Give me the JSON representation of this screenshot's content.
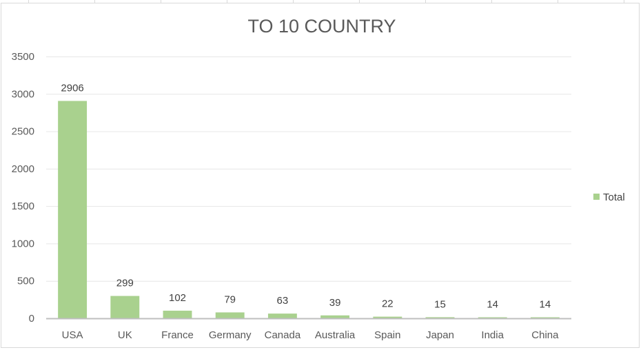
{
  "chart_data": {
    "type": "bar",
    "title": "TO 10 COUNTRY",
    "xlabel": "",
    "ylabel": "",
    "categories": [
      "USA",
      "UK",
      "France",
      "Germany",
      "Canada",
      "Australia",
      "Spain",
      "Japan",
      "India",
      "China"
    ],
    "series": [
      {
        "name": "Total",
        "values": [
          2906,
          299,
          102,
          79,
          63,
          39,
          22,
          15,
          14,
          14
        ],
        "color": "#A9D18E"
      }
    ],
    "data_labels": [
      "2906",
      "299",
      "102",
      "79",
      "63",
      "39",
      "22",
      "15",
      "14",
      "14"
    ],
    "ylim": [
      0,
      3500
    ],
    "yticks": [
      0,
      500,
      1000,
      1500,
      2000,
      2500,
      3000,
      3500
    ],
    "grid": true,
    "legend_position": "right",
    "colors": {
      "bar": "#A9D18E",
      "gridline": "#E6E6E6",
      "axis": "#BFBFBF",
      "title": "#595959",
      "text": "#595959"
    }
  }
}
